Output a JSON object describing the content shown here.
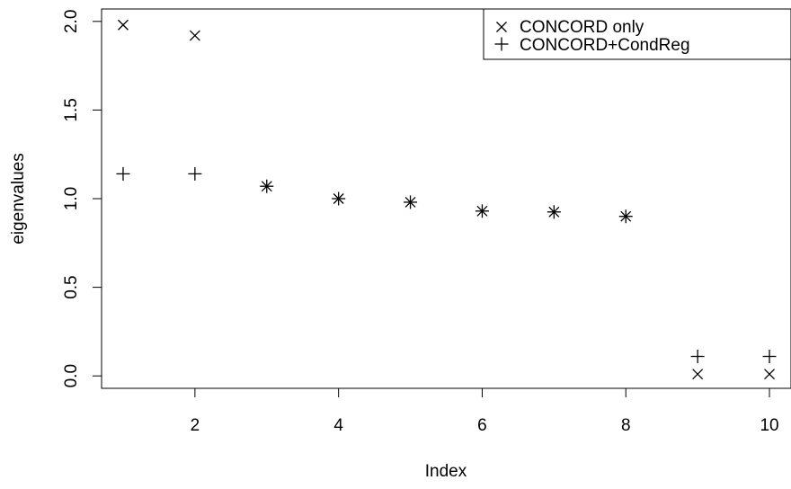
{
  "chart_data": {
    "type": "scatter",
    "title": "",
    "xlabel": "Index",
    "ylabel": "eigenvalues",
    "xlim": [
      0.7,
      10.3
    ],
    "ylim": [
      -0.07,
      2.07
    ],
    "xticks": [
      2,
      4,
      6,
      8,
      10
    ],
    "yticks": [
      0.0,
      0.5,
      1.0,
      1.5,
      2.0
    ],
    "grid": false,
    "legend_position": "top-right",
    "series": [
      {
        "name": "CONCORD only",
        "marker": "x",
        "x": [
          1,
          2,
          3,
          4,
          5,
          6,
          7,
          8,
          9,
          10
        ],
        "y": [
          1.98,
          1.92,
          1.07,
          1.0,
          0.98,
          0.93,
          0.925,
          0.9,
          0.01,
          0.01
        ]
      },
      {
        "name": "CONCORD+CondReg",
        "marker": "+",
        "x": [
          1,
          2,
          3,
          4,
          5,
          6,
          7,
          8,
          9,
          10
        ],
        "y": [
          1.14,
          1.14,
          1.07,
          1.0,
          0.98,
          0.93,
          0.925,
          0.9,
          0.11,
          0.11
        ]
      }
    ]
  }
}
